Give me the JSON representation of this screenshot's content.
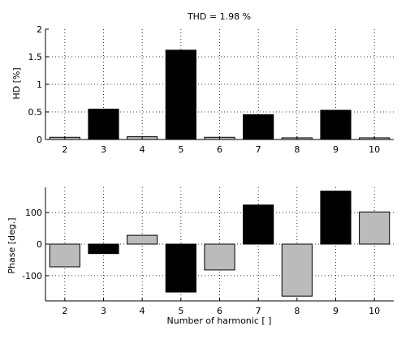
{
  "chart_data": [
    {
      "type": "bar",
      "title": "THD = 1.98 %",
      "xlabel": "",
      "ylabel": "HD [%]",
      "categories": [
        "2",
        "3",
        "4",
        "5",
        "6",
        "7",
        "8",
        "9",
        "10"
      ],
      "values": [
        0.04,
        0.55,
        0.05,
        1.62,
        0.04,
        0.45,
        0.03,
        0.53,
        0.03
      ],
      "ylim": [
        0,
        2
      ],
      "yticks": [
        0,
        0.5,
        1,
        1.5,
        2
      ],
      "ytick_labels": [
        "0",
        "0.5",
        "1",
        "1.5",
        "2"
      ],
      "grid": true,
      "bar_colors": [
        "#bbbbbb",
        "#000000",
        "#bbbbbb",
        "#000000",
        "#bbbbbb",
        "#000000",
        "#bbbbbb",
        "#000000",
        "#bbbbbb"
      ]
    },
    {
      "type": "bar",
      "title": "",
      "xlabel": "Number of harmonic [ ]",
      "ylabel": "Phase [deg.]",
      "categories": [
        "2",
        "3",
        "4",
        "5",
        "6",
        "7",
        "8",
        "9",
        "10"
      ],
      "values": [
        -72,
        -30,
        28,
        -152,
        -82,
        124,
        -165,
        168,
        102
      ],
      "ylim": [
        -180,
        180
      ],
      "yticks": [
        -100,
        0,
        100
      ],
      "ytick_labels": [
        "-100",
        "0",
        "100"
      ],
      "grid": true,
      "bar_colors": [
        "#bbbbbb",
        "#000000",
        "#bbbbbb",
        "#000000",
        "#bbbbbb",
        "#000000",
        "#bbbbbb",
        "#000000",
        "#bbbbbb"
      ]
    }
  ]
}
